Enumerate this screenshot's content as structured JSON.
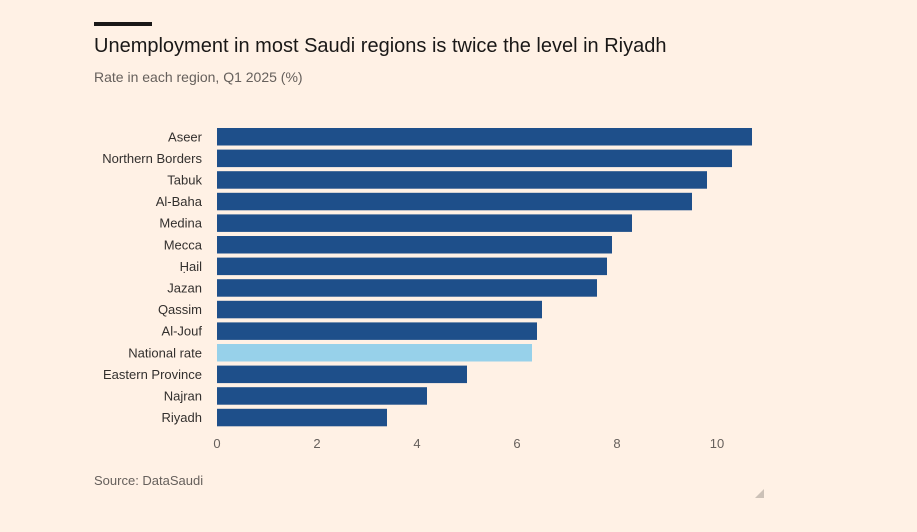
{
  "header": {
    "title": "Unemployment in most Saudi regions is twice the level in Riyadh",
    "subtitle": "Rate in each region, Q1 2025 (%)"
  },
  "footer": {
    "source": "Source: DataSaudi"
  },
  "colors": {
    "bar": "#1e4f8a",
    "highlight": "#97d1ea",
    "tick_text": "#66605c",
    "label_text": "#33302e",
    "background": "#fff1e5"
  },
  "chart_data": {
    "type": "bar",
    "orientation": "horizontal",
    "title": "Unemployment in most Saudi regions is twice the level in Riyadh",
    "subtitle": "Rate in each region, Q1 2025 (%)",
    "xlabel": "",
    "ylabel": "",
    "xlim": [
      0,
      11
    ],
    "xticks": [
      0,
      2,
      4,
      6,
      8,
      10
    ],
    "grid": false,
    "highlight_category": "National rate",
    "categories": [
      "Aseer",
      "Northern Borders",
      "Tabuk",
      "Al-Baha",
      "Medina",
      "Mecca",
      "Ḥail",
      "Jazan",
      "Qassim",
      "Al-Jouf",
      "National rate",
      "Eastern Province",
      "Najran",
      "Riyadh"
    ],
    "values": [
      10.7,
      10.3,
      9.8,
      9.5,
      8.3,
      7.9,
      7.8,
      7.6,
      6.5,
      6.4,
      6.3,
      5.0,
      4.2,
      3.4
    ]
  }
}
